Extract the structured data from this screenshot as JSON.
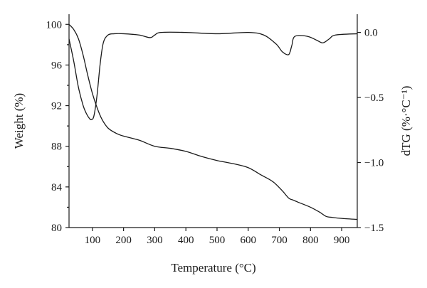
{
  "chart_data": {
    "type": "line",
    "title": "",
    "xlabel": "Temperature (°C)",
    "ylabel": "Weight (%)",
    "y2label": "dTG (%·°C⁻¹)",
    "xlim": [
      25,
      950
    ],
    "ylim": [
      80,
      101
    ],
    "y2lim": [
      -1.5,
      0.14
    ],
    "grid": false,
    "legend": "none",
    "x_ticks": [
      100,
      200,
      300,
      400,
      500,
      600,
      700,
      800,
      900
    ],
    "y_ticks": [
      80,
      84,
      88,
      92,
      96,
      100
    ],
    "y2_ticks": [
      0.0,
      -0.5,
      -1.0,
      -1.5
    ],
    "x_tick_labels": [
      "100",
      "200",
      "300",
      "400",
      "500",
      "600",
      "700",
      "800",
      "900"
    ],
    "y_tick_labels": [
      "80",
      "84",
      "88",
      "92",
      "96",
      "100"
    ],
    "y2_tick_labels": [
      "0.0",
      "−0.5",
      "−1.0",
      "−1.5"
    ],
    "series": [
      {
        "axis": "left",
        "x": [
          25,
          40,
          55,
          70,
          85,
          100,
          115,
          130,
          150,
          175,
          200,
          250,
          300,
          350,
          400,
          450,
          500,
          550,
          600,
          640,
          680,
          710,
          730,
          745,
          760,
          800,
          830,
          850,
          870,
          900,
          950
        ],
        "y": [
          100.0,
          99.5,
          98.6,
          97.0,
          95.0,
          93.2,
          91.8,
          90.7,
          89.8,
          89.3,
          89.0,
          88.6,
          88.0,
          87.8,
          87.5,
          87.0,
          86.6,
          86.3,
          85.9,
          85.2,
          84.5,
          83.6,
          82.9,
          82.7,
          82.5,
          82.0,
          81.5,
          81.1,
          81.0,
          80.9,
          80.8
        ]
      },
      {
        "axis": "right",
        "x": [
          25,
          40,
          55,
          70,
          80,
          90,
          97,
          105,
          115,
          125,
          135,
          150,
          170,
          200,
          250,
          285,
          300,
          320,
          400,
          500,
          600,
          650,
          690,
          710,
          730,
          740,
          750,
          790,
          820,
          840,
          860,
          880,
          950
        ],
        "y": [
          -0.05,
          -0.22,
          -0.42,
          -0.56,
          -0.62,
          -0.66,
          -0.67,
          -0.64,
          -0.48,
          -0.24,
          -0.08,
          -0.02,
          -0.01,
          -0.01,
          -0.02,
          -0.04,
          -0.02,
          0.0,
          0.0,
          -0.01,
          0.0,
          -0.02,
          -0.09,
          -0.15,
          -0.17,
          -0.1,
          -0.03,
          -0.03,
          -0.06,
          -0.08,
          -0.05,
          -0.02,
          -0.01
        ]
      }
    ]
  }
}
